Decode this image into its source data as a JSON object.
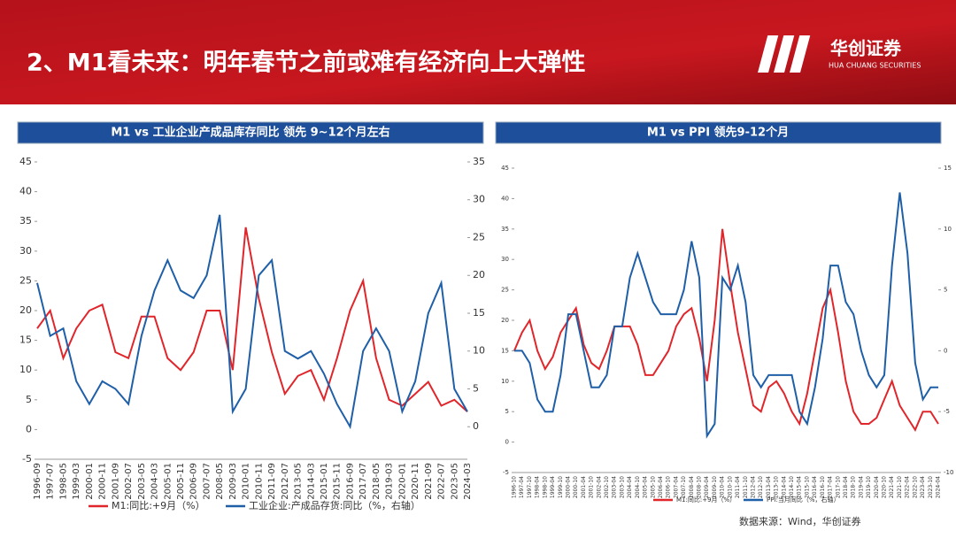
{
  "header": {
    "title": "2、M1看未来：明年春节之前或难有经济向上大弹性",
    "logo": "华创证券",
    "logo_sub": "HUA CHUANG SECURITIES"
  },
  "panels": [
    "M1 vs 工业企业产成品库存同比 领先 9~12个月左右",
    "M1 vs PPI 领先9-12个月"
  ],
  "source": "数据来源：Wind，华创证券",
  "chart_data": [
    {
      "type": "line",
      "categories": [
        "1996-09",
        "1997-07",
        "1998-05",
        "1999-03",
        "2000-01",
        "2000-11",
        "2001-09",
        "2002-07",
        "2003-05",
        "2004-03",
        "2005-01",
        "2005-11",
        "2006-09",
        "2007-07",
        "2008-05",
        "2009-03",
        "2010-01",
        "2010-11",
        "2011-09",
        "2012-07",
        "2013-05",
        "2014-03",
        "2015-01",
        "2015-11",
        "2016-09",
        "2017-07",
        "2018-05",
        "2019-03",
        "2020-01",
        "2020-11",
        "2021-09",
        "2022-07",
        "2023-05",
        "2024-03"
      ],
      "ylim": [
        -5,
        45
      ],
      "yticks": [
        -5,
        0,
        5,
        10,
        15,
        20,
        25,
        30,
        35,
        40,
        45
      ],
      "y2lim": [
        -4.3,
        35
      ],
      "y2ticks": [
        0,
        5,
        10,
        15,
        20,
        25,
        30,
        35
      ],
      "series": [
        {
          "name": "M1:同比:+9月（%）",
          "color": "#e0262b",
          "values": [
            17,
            20,
            12,
            17,
            20,
            21,
            13,
            12,
            19,
            19,
            12,
            10,
            13,
            20,
            20,
            10,
            34,
            22,
            13,
            6,
            9,
            10,
            5,
            12,
            20,
            25,
            12,
            5,
            4,
            6,
            8,
            4,
            5,
            3
          ]
        },
        {
          "name": "工业企业:产成品存货:同比（%，右轴）",
          "color": "#1f5fa8",
          "axis": "y2",
          "values": [
            19,
            12,
            13,
            6,
            3,
            6,
            5,
            3,
            12,
            18,
            22,
            18,
            17,
            20,
            28,
            2,
            5,
            20,
            22,
            10,
            9,
            10,
            7,
            3,
            0,
            10,
            13,
            10,
            2,
            6,
            15,
            19,
            5,
            2
          ]
        }
      ]
    },
    {
      "type": "line",
      "categories": [
        "1996-10",
        "1997-04",
        "1997-10",
        "1998-04",
        "1998-10",
        "1999-04",
        "1999-10",
        "2000-04",
        "2000-10",
        "2001-04",
        "2001-10",
        "2002-04",
        "2002-10",
        "2003-04",
        "2003-10",
        "2004-04",
        "2004-10",
        "2005-04",
        "2005-10",
        "2006-04",
        "2006-10",
        "2007-04",
        "2007-10",
        "2008-04",
        "2008-10",
        "2009-04",
        "2009-10",
        "2010-04",
        "2010-10",
        "2011-04",
        "2011-10",
        "2012-04",
        "2012-10",
        "2013-04",
        "2013-10",
        "2014-04",
        "2014-10",
        "2015-04",
        "2015-10",
        "2016-04",
        "2016-10",
        "2017-04",
        "2017-10",
        "2018-04",
        "2018-10",
        "2019-04",
        "2019-10",
        "2020-04",
        "2020-10",
        "2021-04",
        "2021-10",
        "2022-04",
        "2022-10",
        "2023-04",
        "2023-10",
        "2024-04"
      ],
      "ylim": [
        -5,
        45
      ],
      "yticks": [
        -5,
        0,
        5,
        10,
        15,
        20,
        25,
        30,
        35,
        40,
        45
      ],
      "y2lim": [
        -10,
        15
      ],
      "y2ticks": [
        -10,
        -5,
        0,
        5,
        10,
        15
      ],
      "series": [
        {
          "name": "M1:同比:+9月（%）",
          "color": "#e0262b",
          "values": [
            15,
            18,
            20,
            15,
            12,
            14,
            18,
            20,
            22,
            16,
            13,
            12,
            15,
            19,
            19,
            19,
            16,
            11,
            11,
            13,
            15,
            19,
            21,
            22,
            17,
            10,
            20,
            35,
            26,
            18,
            12,
            6,
            5,
            9,
            10,
            8,
            5,
            3,
            8,
            15,
            22,
            25,
            18,
            10,
            5,
            3,
            3,
            4,
            7,
            10,
            6,
            4,
            2,
            5,
            5,
            3
          ]
        },
        {
          "name": "PPI:当月同比（%，右轴）",
          "color": "#1f5fa8",
          "axis": "y2",
          "values": [
            0,
            0,
            -1,
            -4,
            -5,
            -5,
            -2,
            3,
            3,
            0,
            -3,
            -3,
            -2,
            2,
            2,
            6,
            8,
            6,
            4,
            3,
            3,
            3,
            5,
            9,
            6,
            -7,
            -6,
            6,
            5,
            7,
            4,
            -2,
            -3,
            -2,
            -2,
            -2,
            -2,
            -5,
            -6,
            -3,
            1,
            7,
            7,
            4,
            3,
            0,
            -2,
            -3,
            -2,
            7,
            13,
            8,
            -1,
            -4,
            -3,
            -3
          ]
        }
      ]
    }
  ]
}
